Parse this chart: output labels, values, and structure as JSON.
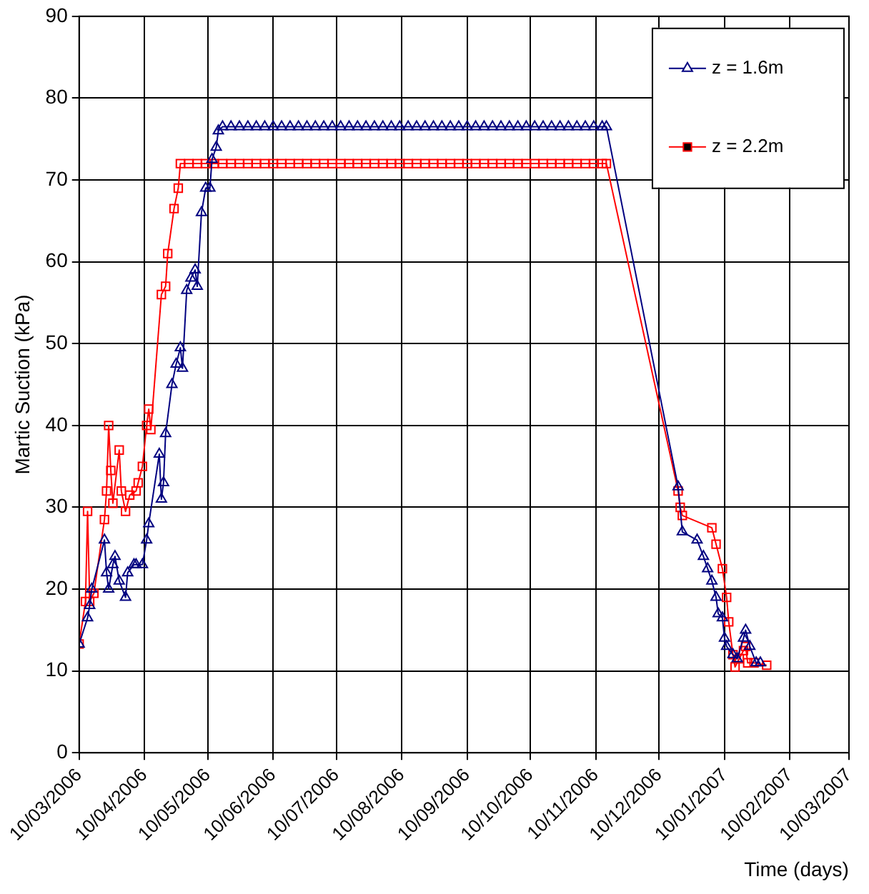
{
  "chart_data": {
    "type": "line",
    "xlabel": "Time (days)",
    "ylabel": "Martic Suction (kPa)",
    "xlim": [
      "2006-03-10",
      "2007-03-10"
    ],
    "xticks": [
      {
        "value": "2006-03-10",
        "label": "10/03/2006"
      },
      {
        "value": "2006-04-10",
        "label": "10/04/2006"
      },
      {
        "value": "2006-05-10",
        "label": "10/05/2006"
      },
      {
        "value": "2006-06-10",
        "label": "10/06/2006"
      },
      {
        "value": "2006-07-10",
        "label": "10/07/2006"
      },
      {
        "value": "2006-08-10",
        "label": "10/08/2006"
      },
      {
        "value": "2006-09-10",
        "label": "10/09/2006"
      },
      {
        "value": "2006-10-10",
        "label": "10/10/2006"
      },
      {
        "value": "2006-11-10",
        "label": "10/11/2006"
      },
      {
        "value": "2006-12-10",
        "label": "10/12/2006"
      },
      {
        "value": "2007-01-10",
        "label": "10/01/2007"
      },
      {
        "value": "2007-02-10",
        "label": "10/02/2007"
      },
      {
        "value": "2007-03-10",
        "label": "10/03/2007"
      }
    ],
    "ylim": [
      0,
      90
    ],
    "yticks": [
      0,
      10,
      20,
      30,
      40,
      50,
      60,
      70,
      80,
      90
    ],
    "grid": true,
    "legend": "top right",
    "line_style": "solid",
    "series": [
      {
        "name": "z = 1.6m",
        "color": "#000080",
        "marker": "triangle",
        "x": [
          "2006-03-10",
          "2006-03-14",
          "2006-03-15",
          "2006-03-16",
          "2006-03-22",
          "2006-03-23",
          "2006-03-24",
          "2006-03-26",
          "2006-03-27",
          "2006-03-29",
          "2006-04-01",
          "2006-04-02",
          "2006-04-05",
          "2006-04-06",
          "2006-04-09",
          "2006-04-11",
          "2006-04-12",
          "2006-04-17",
          "2006-04-18",
          "2006-04-19",
          "2006-04-20",
          "2006-04-23",
          "2006-04-25",
          "2006-04-27",
          "2006-04-28",
          "2006-04-30",
          "2006-05-02",
          "2006-05-04",
          "2006-05-05",
          "2006-05-07",
          "2006-05-09",
          "2006-05-11",
          "2006-05-12",
          "2006-05-14",
          "2006-05-15",
          "2006-05-17",
          "2006-05-21",
          "2006-05-25",
          "2006-05-29",
          "2006-06-02",
          "2006-06-06",
          "2006-06-10",
          "2006-06-14",
          "2006-06-18",
          "2006-06-22",
          "2006-06-26",
          "2006-06-30",
          "2006-07-04",
          "2006-07-08",
          "2006-07-12",
          "2006-07-16",
          "2006-07-20",
          "2006-07-24",
          "2006-07-28",
          "2006-08-01",
          "2006-08-05",
          "2006-08-09",
          "2006-08-13",
          "2006-08-17",
          "2006-08-21",
          "2006-08-25",
          "2006-08-29",
          "2006-09-02",
          "2006-09-06",
          "2006-09-10",
          "2006-09-14",
          "2006-09-18",
          "2006-09-22",
          "2006-09-26",
          "2006-09-30",
          "2006-10-04",
          "2006-10-08",
          "2006-10-12",
          "2006-10-16",
          "2006-10-20",
          "2006-10-24",
          "2006-10-28",
          "2006-11-01",
          "2006-11-05",
          "2006-11-09",
          "2006-11-13",
          "2006-11-15",
          "2006-12-19",
          "2006-12-21",
          "2006-12-28",
          "2006-12-31",
          "2007-01-02",
          "2007-01-04",
          "2007-01-06",
          "2007-01-07",
          "2007-01-09",
          "2007-01-10",
          "2007-01-11",
          "2007-01-14",
          "2007-01-16",
          "2007-01-19",
          "2007-01-20",
          "2007-01-22",
          "2007-01-25",
          "2007-01-27"
        ],
        "values": [
          13.3,
          16.5,
          18,
          20,
          26,
          22,
          20,
          23,
          24,
          21,
          19,
          22,
          23,
          23,
          23,
          26,
          28,
          36.5,
          31,
          33,
          39,
          45,
          47.5,
          49.5,
          47,
          56.5,
          58,
          59,
          57,
          66,
          69,
          69,
          72.5,
          74,
          76,
          76.5,
          76.5,
          76.5,
          76.5,
          76.5,
          76.5,
          76.5,
          76.5,
          76.5,
          76.5,
          76.5,
          76.5,
          76.5,
          76.5,
          76.5,
          76.5,
          76.5,
          76.5,
          76.5,
          76.5,
          76.5,
          76.5,
          76.5,
          76.5,
          76.5,
          76.5,
          76.5,
          76.5,
          76.5,
          76.5,
          76.5,
          76.5,
          76.5,
          76.5,
          76.5,
          76.5,
          76.5,
          76.5,
          76.5,
          76.5,
          76.5,
          76.5,
          76.5,
          76.5,
          76.5,
          76.5,
          76.5,
          32.5,
          27,
          26,
          24,
          22.5,
          21,
          19,
          17,
          16.5,
          14,
          13,
          12,
          11.5,
          14,
          15,
          13,
          11,
          11
        ]
      },
      {
        "name": "z = 2.2m",
        "color": "#ff0000",
        "marker": "square",
        "x": [
          "2006-03-10",
          "2006-03-13",
          "2006-03-14",
          "2006-03-15",
          "2006-03-17",
          "2006-03-22",
          "2006-03-23",
          "2006-03-24",
          "2006-03-25",
          "2006-03-26",
          "2006-03-29",
          "2006-03-30",
          "2006-04-01",
          "2006-04-03",
          "2006-04-06",
          "2006-04-07",
          "2006-04-09",
          "2006-04-11",
          "2006-04-12",
          "2006-04-13",
          "2006-04-18",
          "2006-04-20",
          "2006-04-21",
          "2006-04-24",
          "2006-04-26",
          "2006-04-27",
          "2006-05-01",
          "2006-05-05",
          "2006-05-09",
          "2006-05-13",
          "2006-05-17",
          "2006-05-21",
          "2006-05-25",
          "2006-05-29",
          "2006-06-02",
          "2006-06-06",
          "2006-06-10",
          "2006-06-14",
          "2006-06-18",
          "2006-06-22",
          "2006-06-26",
          "2006-06-30",
          "2006-07-04",
          "2006-07-08",
          "2006-07-12",
          "2006-07-16",
          "2006-07-20",
          "2006-07-24",
          "2006-07-28",
          "2006-08-01",
          "2006-08-05",
          "2006-08-09",
          "2006-08-13",
          "2006-08-17",
          "2006-08-21",
          "2006-08-25",
          "2006-08-29",
          "2006-09-02",
          "2006-09-06",
          "2006-09-10",
          "2006-09-14",
          "2006-09-18",
          "2006-09-22",
          "2006-09-26",
          "2006-09-30",
          "2006-10-04",
          "2006-10-08",
          "2006-10-12",
          "2006-10-16",
          "2006-10-20",
          "2006-10-24",
          "2006-10-28",
          "2006-11-01",
          "2006-11-05",
          "2006-11-09",
          "2006-11-13",
          "2006-11-15",
          "2006-12-19",
          "2006-12-20",
          "2006-12-21",
          "2007-01-04",
          "2007-01-06",
          "2007-01-09",
          "2007-01-11",
          "2007-01-12",
          "2007-01-14",
          "2007-01-15",
          "2007-01-17",
          "2007-01-19",
          "2007-01-20",
          "2007-01-21",
          "2007-01-24",
          "2007-01-30"
        ],
        "values": [
          13.3,
          18.5,
          29.5,
          18.5,
          19.5,
          28.5,
          32,
          40,
          34.5,
          30.5,
          37,
          32,
          29.5,
          31.5,
          32,
          33,
          35,
          40,
          42,
          39.5,
          56,
          57,
          61,
          66.5,
          69,
          72,
          72,
          72,
          72,
          72,
          72,
          72,
          72,
          72,
          72,
          72,
          72,
          72,
          72,
          72,
          72,
          72,
          72,
          72,
          72,
          72,
          72,
          72,
          72,
          72,
          72,
          72,
          72,
          72,
          72,
          72,
          72,
          72,
          72,
          72,
          72,
          72,
          72,
          72,
          72,
          72,
          72,
          72,
          72,
          72,
          72,
          72,
          72,
          72,
          72,
          72,
          72,
          32,
          30,
          29,
          27.5,
          25.5,
          22.5,
          19,
          16,
          12,
          10.5,
          11.5,
          12.5,
          13,
          11,
          11,
          10.7
        ]
      }
    ]
  }
}
